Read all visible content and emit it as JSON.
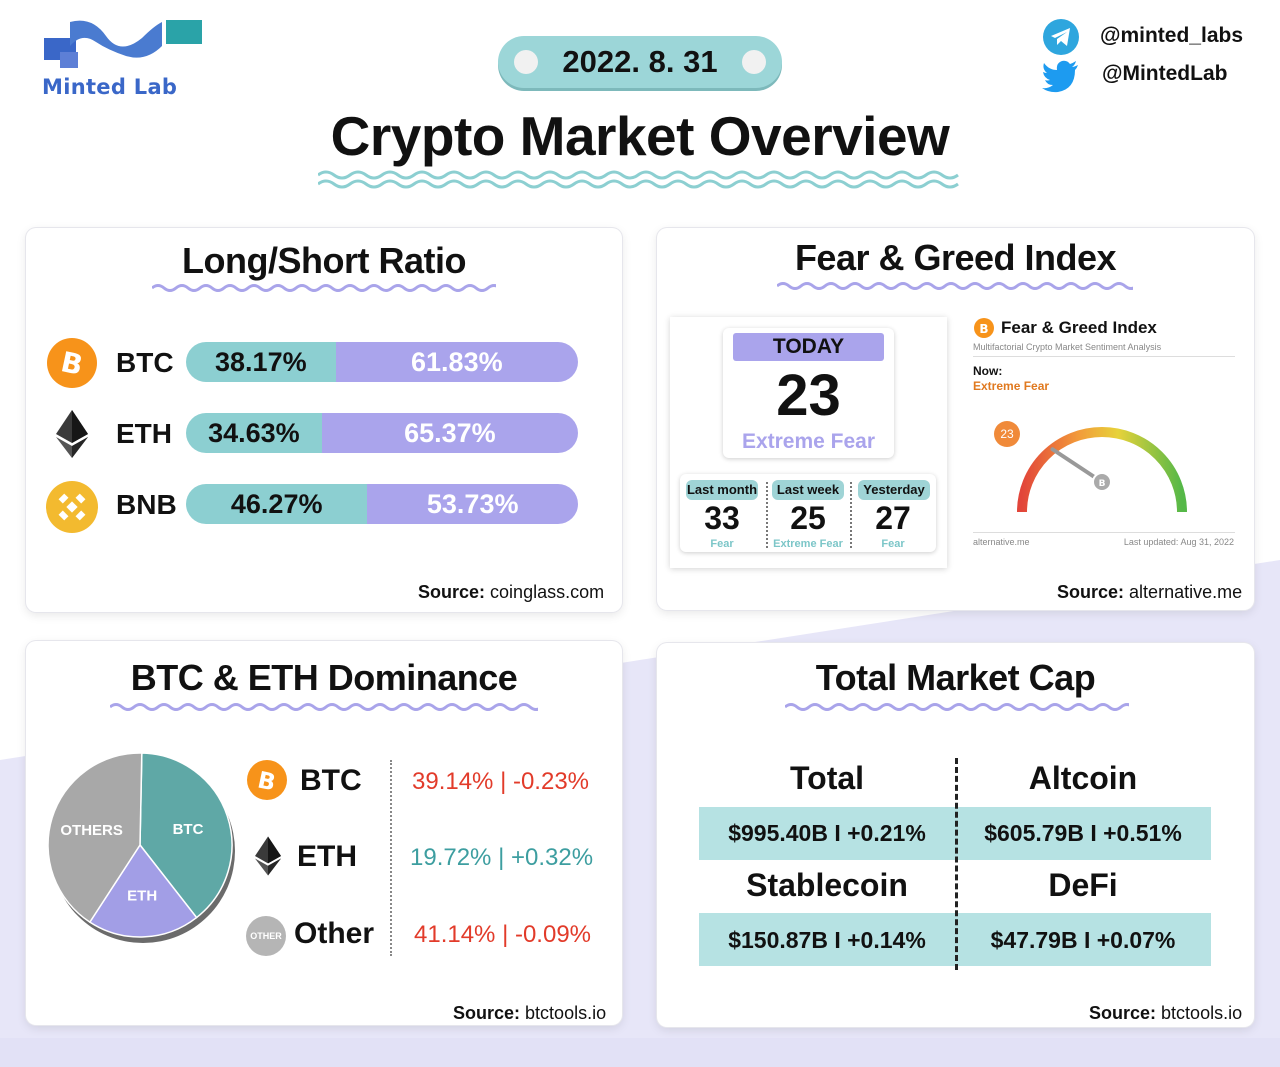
{
  "brand": {
    "name": "Minted Lab"
  },
  "date": "2022. 8. 31",
  "title": "Crypto Market Overview",
  "social": [
    {
      "icon": "telegram-icon",
      "handle": "@minted_labs"
    },
    {
      "icon": "twitter-icon",
      "handle": "@MintedLab"
    }
  ],
  "long_short": {
    "title": "Long/Short Ratio",
    "rows": [
      {
        "coin": "BTC",
        "icon": "btc-icon",
        "long": "38.17%",
        "short": "61.83%",
        "long_pct": 38.17
      },
      {
        "coin": "ETH",
        "icon": "eth-icon",
        "long": "34.63%",
        "short": "65.37%",
        "long_pct": 34.63
      },
      {
        "coin": "BNB",
        "icon": "bnb-icon",
        "long": "46.27%",
        "short": "53.73%",
        "long_pct": 46.27
      }
    ],
    "source_label": "Source:",
    "source": "coinglass.com"
  },
  "fear_greed": {
    "title": "Fear & Greed Index",
    "today_label": "TODAY",
    "today_value": "23",
    "today_text": "Extreme Fear",
    "history": [
      {
        "label": "Last month",
        "value": "33",
        "text": "Fear"
      },
      {
        "label": "Last week",
        "value": "25",
        "text": "Extreme Fear"
      },
      {
        "label": "Yesterday",
        "value": "27",
        "text": "Fear"
      }
    ],
    "widget": {
      "title": "Fear & Greed Index",
      "subtitle": "Multifactorial Crypto Market Sentiment Analysis",
      "now_label": "Now:",
      "now_text": "Extreme Fear",
      "value": "23",
      "value_num": 23,
      "footer_left": "alternative.me",
      "footer_right": "Last updated: Aug 31, 2022"
    },
    "source_label": "Source:",
    "source": "alternative.me"
  },
  "dominance": {
    "title": "BTC & ETH Dominance",
    "pie": [
      {
        "label": "BTC",
        "value": 39.14,
        "color": "#5fa8a6"
      },
      {
        "label": "ETH",
        "value": 19.72,
        "color": "#a29ee6"
      },
      {
        "label": "OTHERS",
        "value": 41.14,
        "color": "#a8a8a8"
      }
    ],
    "rows": [
      {
        "coin": "BTC",
        "icon": "btc-icon",
        "value": "39.14% | -0.23%",
        "color": "#e23b2a"
      },
      {
        "coin": "ETH",
        "icon": "eth-icon",
        "value": "19.72% | +0.32%",
        "color": "#3d9ea0"
      },
      {
        "coin": "Other",
        "icon": "other-icon",
        "icon_text": "OTHER",
        "value": "41.14% | -0.09%",
        "color": "#e23b2a"
      }
    ],
    "source_label": "Source:",
    "source": "btctools.io"
  },
  "market_cap": {
    "title": "Total Market Cap",
    "cells": [
      {
        "label": "Total",
        "value": "$995.40B I +0.21%"
      },
      {
        "label": "Altcoin",
        "value": "$605.79B I +0.51%"
      },
      {
        "label": "Stablecoin",
        "value": "$150.87B I +0.14%"
      },
      {
        "label": "DeFi",
        "value": "$47.79B I +0.07%"
      }
    ],
    "source_label": "Source:",
    "source": "btctools.io"
  },
  "colors": {
    "teal": "#8ccfd1",
    "lavender": "#aaa4ec",
    "btc": "#f7931a",
    "bnb": "#f3ba2f",
    "down": "#e23b2a",
    "up": "#3d9ea0"
  }
}
